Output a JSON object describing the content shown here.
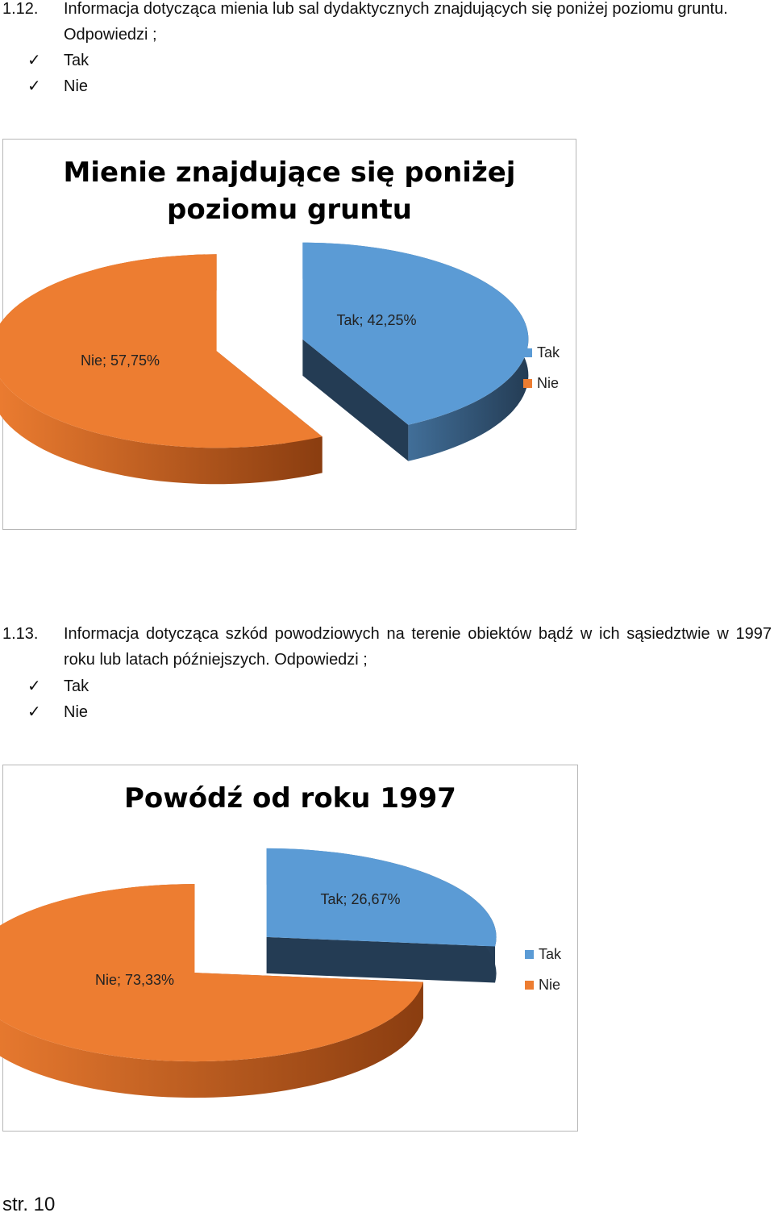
{
  "questions": [
    {
      "number": "1.12.",
      "text": "Informacja dotycząca mienia lub sal dydaktycznych znajdujących się poniżej poziomu gruntu.",
      "prompt": "Odpowiedzi ;",
      "options": [
        "Tak",
        "Nie"
      ]
    },
    {
      "number": "1.13.",
      "text": "Informacja dotycząca szkód powodziowych na terenie obiektów bądź w ich sąsiedztwie w 1997 roku lub latach późniejszych. Odpowiedzi ;",
      "options": [
        "Tak",
        "Nie"
      ]
    }
  ],
  "colors": {
    "tak": "#5b9bd5",
    "tak_side": "#243c54",
    "nie": "#ed7d31",
    "nie_side": "#8a3d10",
    "frame": "#b7b7b7"
  },
  "chart_data": [
    {
      "type": "pie",
      "title": "Mienie znajdujące się poniżej poziomu gruntu",
      "title_lines": [
        "Mienie znajdujące się poniżej",
        "poziomu gruntu"
      ],
      "categories": [
        "Tak",
        "Nie"
      ],
      "values": [
        42.25,
        57.75
      ],
      "data_labels": [
        "Tak; 42,25%",
        "Nie; 57,75%"
      ],
      "legend": [
        "Tak",
        "Nie"
      ],
      "legend_position": "right",
      "style": "3d-exploded"
    },
    {
      "type": "pie",
      "title": "Powódź od roku 1997",
      "title_lines": [
        "Powódź od roku 1997"
      ],
      "categories": [
        "Tak",
        "Nie"
      ],
      "values": [
        26.67,
        73.33
      ],
      "data_labels": [
        "Tak; 26,67%",
        "Nie; 73,33%"
      ],
      "legend": [
        "Tak",
        "Nie"
      ],
      "legend_position": "right",
      "style": "3d-exploded"
    }
  ],
  "footer": "str. 10"
}
